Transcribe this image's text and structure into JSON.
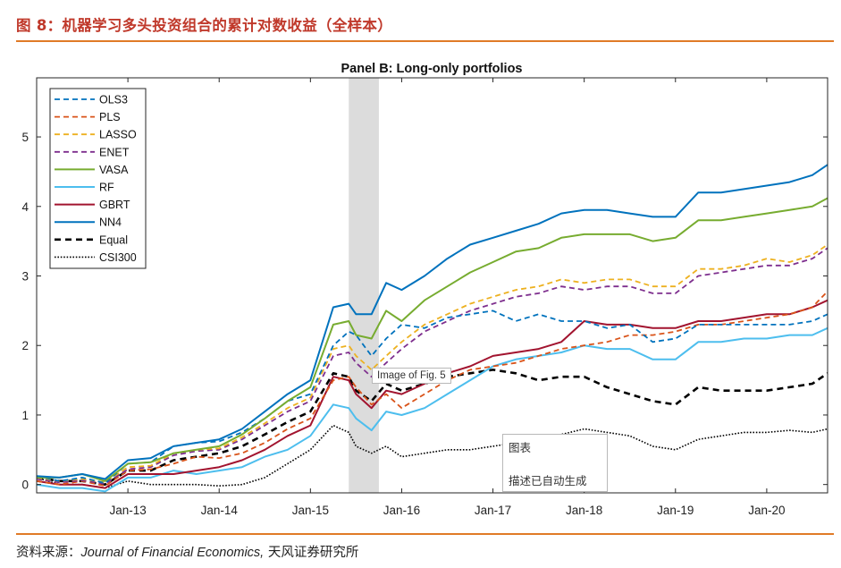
{
  "header": {
    "figure_title": "图 8：机器学习多头投资组合的累计对数收益（全样本）"
  },
  "footer": {
    "source_prefix": "资料来源：",
    "journal": "Journal of Financial Economics,",
    "source_suffix": " 天风证券研究所"
  },
  "overlays": {
    "fig_tooltip": "Image of Fig. 5",
    "alt_box_title": "图表",
    "alt_box_text": "描述已自动生成"
  },
  "colors": {
    "OLS3": "#0072BD",
    "PLS": "#D95319",
    "LASSO": "#EDB120",
    "ENET": "#7E2F8E",
    "VASA": "#77AC30",
    "RF": "#4DBEEE",
    "GBRT": "#A2142F",
    "NN4": "#0072BD",
    "Equal": "#000000",
    "CSI300": "#000000",
    "accent": "#e07b27",
    "recession": "#dcdcdc"
  },
  "chart_data": {
    "type": "line",
    "title": "Panel B: Long-only portfolios",
    "xlabel": "",
    "ylabel": "",
    "xlim": [
      2012.0,
      2020.667
    ],
    "ylim": [
      -0.12,
      5.85
    ],
    "yticks": [
      0,
      1,
      2,
      3,
      4,
      5
    ],
    "xticks": [
      {
        "label": "Jan-13",
        "value": 2013
      },
      {
        "label": "Jan-14",
        "value": 2014
      },
      {
        "label": "Jan-15",
        "value": 2015
      },
      {
        "label": "Jan-16",
        "value": 2016
      },
      {
        "label": "Jan-17",
        "value": 2017
      },
      {
        "label": "Jan-18",
        "value": 2018
      },
      {
        "label": "Jan-19",
        "value": 2019
      },
      {
        "label": "Jan-20",
        "value": 2020
      }
    ],
    "shaded_period": [
      2015.42,
      2015.75
    ],
    "legend_position": "top-left",
    "x": [
      2012.0,
      2012.25,
      2012.5,
      2012.75,
      2013.0,
      2013.25,
      2013.5,
      2013.75,
      2014.0,
      2014.25,
      2014.5,
      2014.75,
      2015.0,
      2015.25,
      2015.42,
      2015.5,
      2015.67,
      2015.83,
      2016.0,
      2016.25,
      2016.5,
      2016.75,
      2017.0,
      2017.25,
      2017.5,
      2017.75,
      2018.0,
      2018.25,
      2018.5,
      2018.75,
      2019.0,
      2019.25,
      2019.5,
      2019.75,
      2020.0,
      2020.25,
      2020.5,
      2020.667
    ],
    "series": [
      {
        "name": "OLS3",
        "style": "dashed",
        "values": [
          0.12,
          0.05,
          0.1,
          0.02,
          0.3,
          0.32,
          0.55,
          0.6,
          0.62,
          0.75,
          0.95,
          1.2,
          1.3,
          2.0,
          2.2,
          2.15,
          1.85,
          2.1,
          2.3,
          2.25,
          2.4,
          2.45,
          2.5,
          2.35,
          2.45,
          2.35,
          2.35,
          2.25,
          2.3,
          2.05,
          2.1,
          2.3,
          2.3,
          2.3,
          2.3,
          2.3,
          2.35,
          2.45
        ]
      },
      {
        "name": "PLS",
        "style": "dashed",
        "values": [
          0.05,
          0.0,
          0.05,
          -0.02,
          0.2,
          0.22,
          0.3,
          0.4,
          0.38,
          0.45,
          0.6,
          0.8,
          0.95,
          1.5,
          1.55,
          1.4,
          1.15,
          1.3,
          1.1,
          1.3,
          1.5,
          1.65,
          1.7,
          1.75,
          1.85,
          1.95,
          2.0,
          2.05,
          2.15,
          2.15,
          2.2,
          2.3,
          2.3,
          2.35,
          2.4,
          2.45,
          2.55,
          2.78
        ]
      },
      {
        "name": "LASSO",
        "style": "dashed",
        "values": [
          0.1,
          0.05,
          0.08,
          0.03,
          0.25,
          0.27,
          0.45,
          0.5,
          0.52,
          0.68,
          0.88,
          1.1,
          1.25,
          1.95,
          2.0,
          1.85,
          1.65,
          1.85,
          2.05,
          2.3,
          2.45,
          2.6,
          2.7,
          2.8,
          2.85,
          2.95,
          2.9,
          2.95,
          2.95,
          2.85,
          2.85,
          3.1,
          3.1,
          3.15,
          3.25,
          3.2,
          3.3,
          3.45
        ]
      },
      {
        "name": "ENET",
        "style": "dashed",
        "values": [
          0.08,
          0.03,
          0.06,
          0.01,
          0.22,
          0.25,
          0.42,
          0.48,
          0.5,
          0.65,
          0.85,
          1.05,
          1.2,
          1.85,
          1.9,
          1.75,
          1.55,
          1.75,
          1.95,
          2.2,
          2.35,
          2.5,
          2.6,
          2.7,
          2.75,
          2.85,
          2.8,
          2.85,
          2.85,
          2.75,
          2.75,
          3.0,
          3.05,
          3.1,
          3.15,
          3.15,
          3.25,
          3.4
        ]
      },
      {
        "name": "VASA",
        "style": "solid",
        "values": [
          0.1,
          0.1,
          0.15,
          0.05,
          0.3,
          0.32,
          0.45,
          0.5,
          0.55,
          0.72,
          0.95,
          1.2,
          1.4,
          2.3,
          2.35,
          2.15,
          2.1,
          2.5,
          2.35,
          2.65,
          2.85,
          3.05,
          3.2,
          3.35,
          3.4,
          3.55,
          3.6,
          3.6,
          3.6,
          3.5,
          3.55,
          3.8,
          3.8,
          3.85,
          3.9,
          3.95,
          4.0,
          4.12
        ]
      },
      {
        "name": "RF",
        "style": "solid",
        "values": [
          0.0,
          -0.05,
          -0.05,
          -0.1,
          0.1,
          0.1,
          0.2,
          0.15,
          0.2,
          0.25,
          0.4,
          0.5,
          0.7,
          1.15,
          1.1,
          0.95,
          0.78,
          1.05,
          1.0,
          1.1,
          1.3,
          1.5,
          1.7,
          1.8,
          1.85,
          1.9,
          2.0,
          1.95,
          1.95,
          1.8,
          1.8,
          2.05,
          2.05,
          2.1,
          2.1,
          2.15,
          2.15,
          2.25
        ]
      },
      {
        "name": "GBRT",
        "style": "solid",
        "values": [
          0.05,
          0.0,
          0.0,
          -0.05,
          0.15,
          0.15,
          0.15,
          0.2,
          0.25,
          0.35,
          0.5,
          0.7,
          0.85,
          1.55,
          1.5,
          1.3,
          1.1,
          1.35,
          1.3,
          1.45,
          1.6,
          1.7,
          1.85,
          1.9,
          1.95,
          2.05,
          2.35,
          2.3,
          2.3,
          2.25,
          2.25,
          2.35,
          2.35,
          2.4,
          2.45,
          2.45,
          2.55,
          2.65
        ]
      },
      {
        "name": "NN4",
        "style": "solid",
        "values": [
          0.12,
          0.1,
          0.15,
          0.08,
          0.35,
          0.38,
          0.55,
          0.6,
          0.65,
          0.8,
          1.05,
          1.3,
          1.5,
          2.55,
          2.6,
          2.45,
          2.45,
          2.9,
          2.8,
          3.0,
          3.25,
          3.45,
          3.55,
          3.65,
          3.75,
          3.9,
          3.95,
          3.95,
          3.9,
          3.85,
          3.85,
          4.2,
          4.2,
          4.25,
          4.3,
          4.35,
          4.45,
          4.6
        ]
      },
      {
        "name": "Equal",
        "style": "dashed-bold",
        "values": [
          0.1,
          0.05,
          0.05,
          0.0,
          0.2,
          0.2,
          0.35,
          0.4,
          0.45,
          0.55,
          0.72,
          0.9,
          1.05,
          1.6,
          1.55,
          1.35,
          1.2,
          1.45,
          1.35,
          1.45,
          1.55,
          1.6,
          1.65,
          1.6,
          1.5,
          1.55,
          1.55,
          1.4,
          1.3,
          1.2,
          1.15,
          1.4,
          1.35,
          1.35,
          1.35,
          1.4,
          1.45,
          1.6
        ]
      },
      {
        "name": "CSI300",
        "style": "dotted",
        "values": [
          0.1,
          0.0,
          0.0,
          -0.05,
          0.05,
          0.0,
          0.0,
          0.0,
          -0.02,
          0.0,
          0.1,
          0.3,
          0.5,
          0.85,
          0.75,
          0.55,
          0.45,
          0.55,
          0.4,
          0.45,
          0.5,
          0.5,
          0.55,
          0.6,
          0.65,
          0.72,
          0.8,
          0.75,
          0.7,
          0.55,
          0.5,
          0.65,
          0.7,
          0.75,
          0.75,
          0.78,
          0.75,
          0.8
        ]
      }
    ]
  }
}
